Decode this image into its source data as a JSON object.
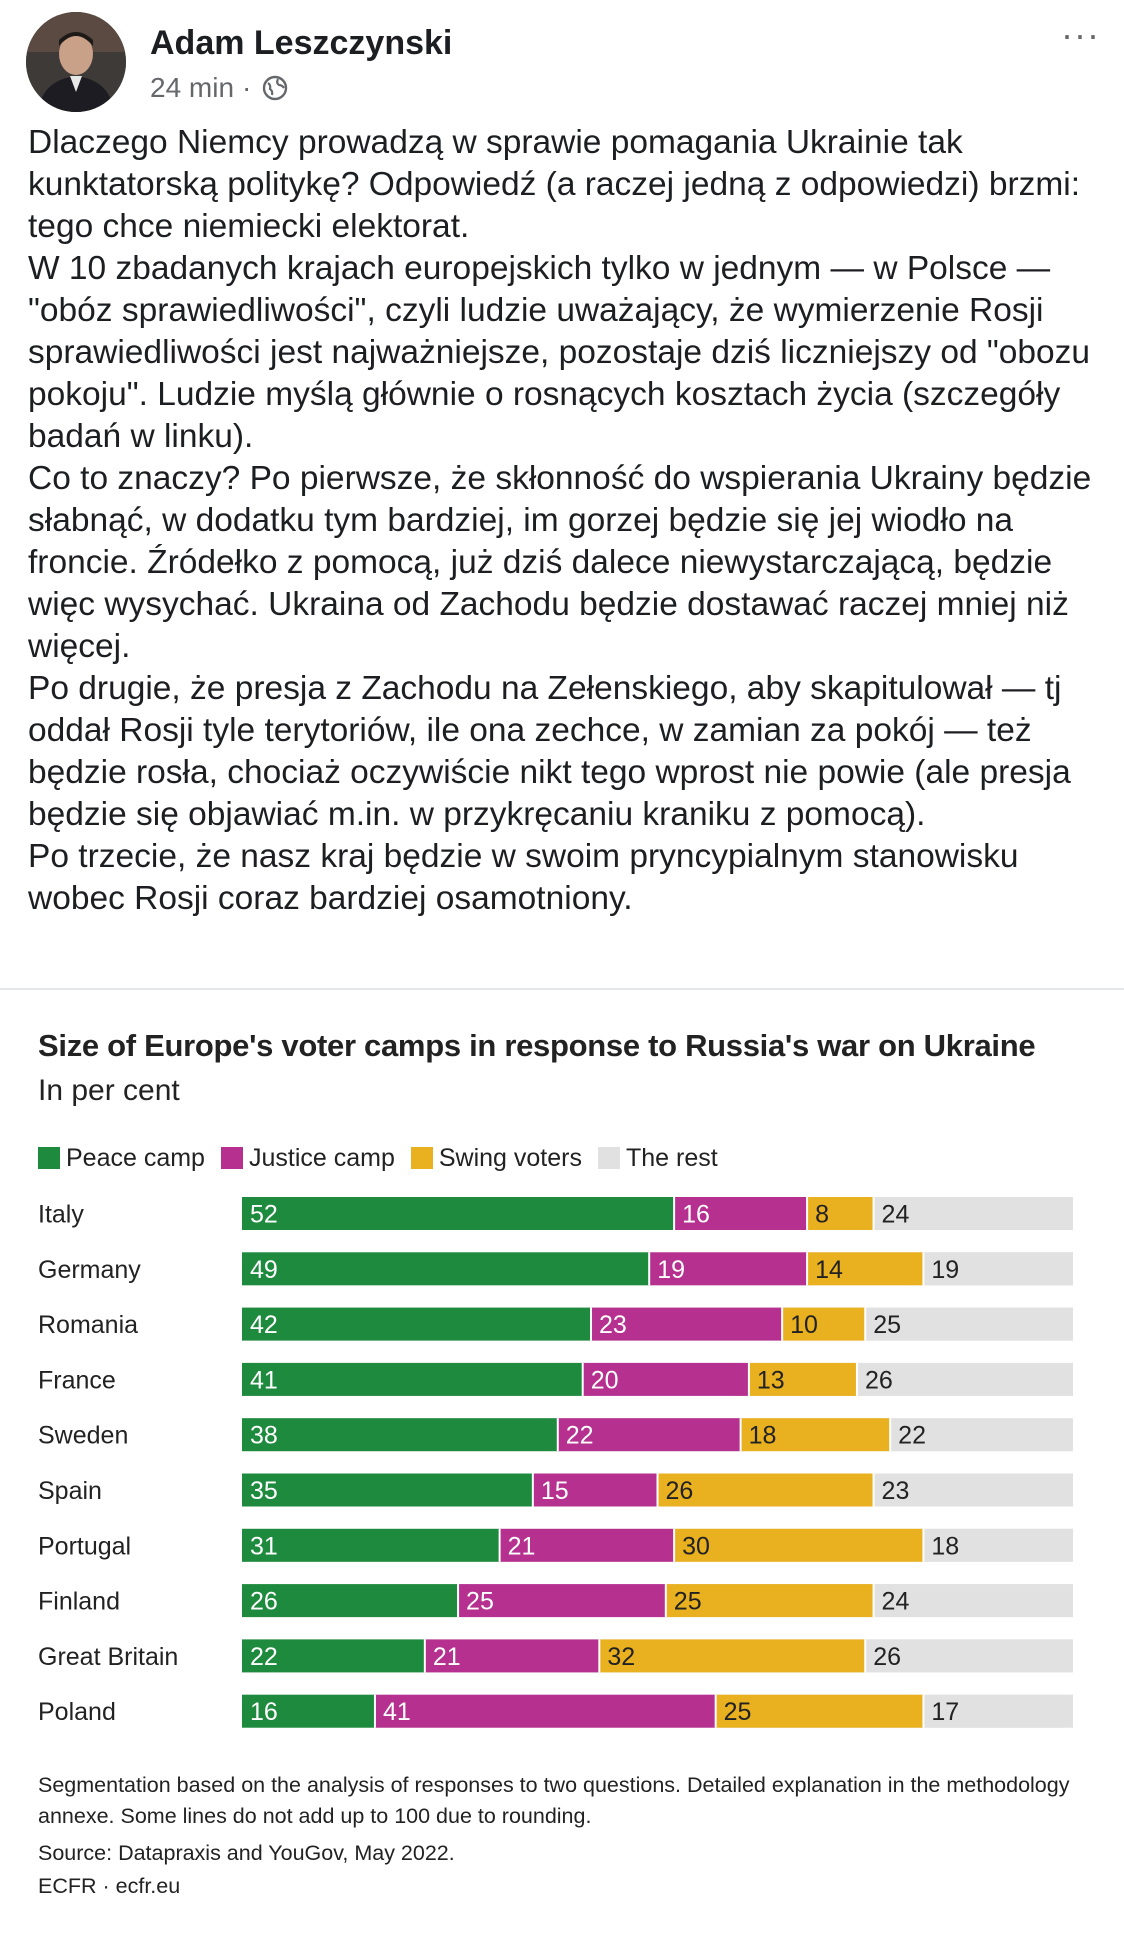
{
  "post": {
    "author": "Adam Leszczynski",
    "time": "24 min",
    "separator": "·",
    "more": "···",
    "paragraphs": [
      "Dlaczego Niemcy prowadzą w sprawie pomagania Ukrainie tak kunktatorską politykę? Odpowiedź (a raczej jedną z odpowiedzi) brzmi: tego chce niemiecki elektorat.",
      "W 10 zbadanych krajach europejskich tylko w jednym — w Polsce — \"obóz sprawiedliwości\", czyli ludzie uważający, że wymierzenie Rosji sprawiedliwości jest najważniejsze, pozostaje dziś liczniejszy od \"obozu pokoju\". Ludzie myślą głównie o rosnących kosztach życia (szczegóły badań w linku).",
      "Co to znaczy? Po pierwsze, że skłonność do wspierania Ukrainy będzie słabnąć, w dodatku tym bardziej, im gorzej będzie się jej wiodło na froncie. Źródełko z pomocą, już dziś dalece niewystarczającą, będzie więc wysychać. Ukraina od Zachodu będzie dostawać raczej mniej niż więcej.",
      "Po drugie, że presja z Zachodu na Zełenskiego, aby skapitulował — tj oddał Rosji tyle terytoriów, ile ona zechce, w zamian za pokój — też będzie rosła, chociaż oczywiście nikt tego wprost nie powie (ale presja będzie się objawiać m.in. w przykręcaniu kraniku z pomocą).",
      "Po trzecie, że nasz kraj będzie w swoim pryncypialnym stanowisku wobec Rosji coraz bardziej osamotniony."
    ]
  },
  "icons": {
    "privacy": "globe-icon",
    "more": "more-dots-icon"
  },
  "chart_data": {
    "type": "bar",
    "orientation": "horizontal",
    "stacked": true,
    "title": "Size of Europe's voter camps in response to Russia's war on Ukraine",
    "subtitle": "In per cent",
    "legend_position": "top-left",
    "categories": [
      "Italy",
      "Germany",
      "Romania",
      "France",
      "Sweden",
      "Spain",
      "Portugal",
      "Finland",
      "Great Britain",
      "Poland"
    ],
    "series": [
      {
        "name": "Peace camp",
        "color": "#1e8a3e",
        "values": [
          52,
          49,
          42,
          41,
          38,
          35,
          31,
          26,
          22,
          16
        ]
      },
      {
        "name": "Justice camp",
        "color": "#b5308f",
        "values": [
          16,
          19,
          23,
          20,
          22,
          15,
          21,
          25,
          21,
          41
        ]
      },
      {
        "name": "Swing voters",
        "color": "#e9b020",
        "values": [
          8,
          14,
          10,
          13,
          18,
          26,
          30,
          25,
          32,
          25
        ]
      },
      {
        "name": "The rest",
        "color": "#e1e1e1",
        "values": [
          24,
          19,
          25,
          26,
          22,
          23,
          18,
          24,
          26,
          17
        ]
      }
    ],
    "xlim": [
      0,
      100
    ],
    "grid": false
  },
  "footnotes": {
    "note": "Segmentation based on the analysis of responses to two questions. Detailed explanation in the methodology annexe. Some lines do not add up to 100 due to rounding.",
    "source": "Source: Datapraxis and YouGov, May 2022.",
    "credit": "ECFR · ecfr.eu"
  }
}
